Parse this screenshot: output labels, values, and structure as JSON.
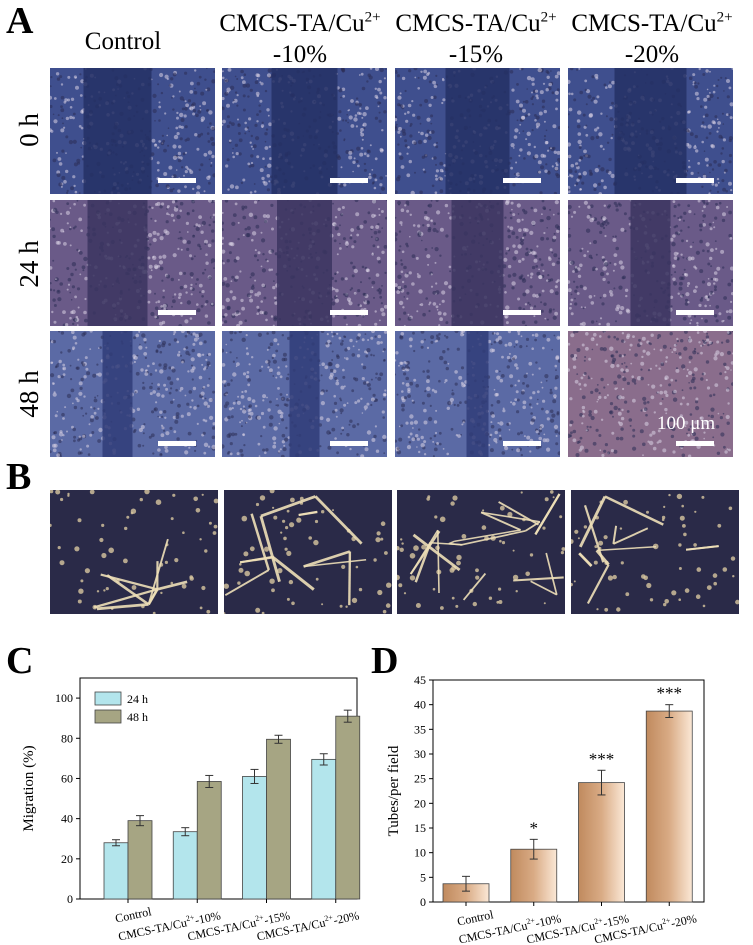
{
  "panels": {
    "A": {
      "label": "A",
      "columns": [
        {
          "line1": "Control",
          "line2": "",
          "sup": ""
        },
        {
          "line1": "CMCS-TA/Cu",
          "sup": "2+",
          "line2": "-10%"
        },
        {
          "line1": "CMCS-TA/Cu",
          "sup": "2+",
          "line2": "-15%"
        },
        {
          "line1": "CMCS-TA/Cu",
          "sup": "2+",
          "line2": "-20%"
        }
      ],
      "rows": [
        "0 h",
        "24 h",
        "48 h"
      ],
      "scale_label": "100 μm"
    },
    "B": {
      "label": "B"
    },
    "C": {
      "label": "C"
    },
    "D": {
      "label": "D"
    }
  },
  "chart_data": [
    {
      "type": "bar",
      "panel": "C",
      "categories": [
        "Control",
        "CMCS-TA/Cu2+-10%",
        "CMCS-TA/Cu2+-15%",
        "CMCS-TA/Cu2+-20%"
      ],
      "category_labels": [
        {
          "pre": "Control",
          "sup": "",
          "post": ""
        },
        {
          "pre": "CMCS-TA/Cu",
          "sup": "2+",
          "post": "-10%"
        },
        {
          "pre": "CMCS-TA/Cu",
          "sup": "2+",
          "post": "-15%"
        },
        {
          "pre": "CMCS-TA/Cu",
          "sup": "2+",
          "post": "-20%"
        }
      ],
      "series": [
        {
          "name": "24 h",
          "values": [
            28,
            33.5,
            61,
            69.5
          ],
          "errors": [
            1.5,
            2,
            3.5,
            2.8
          ],
          "color": "#b3e5ec"
        },
        {
          "name": "48 h",
          "values": [
            39,
            58.5,
            79.5,
            91
          ],
          "errors": [
            2.5,
            3,
            2,
            3
          ],
          "color": "#a6a583"
        }
      ],
      "ylabel": "Migration (%)",
      "ylim": [
        0,
        110
      ],
      "yticks": [
        0,
        20,
        40,
        60,
        80,
        100
      ],
      "legend": "top-left"
    },
    {
      "type": "bar",
      "panel": "D",
      "categories": [
        "Control",
        "CMCS-TA/Cu2+-10%",
        "CMCS-TA/Cu2+-15%",
        "CMCS-TA/Cu2+-20%"
      ],
      "category_labels": [
        {
          "pre": "Control",
          "sup": "",
          "post": ""
        },
        {
          "pre": "CMCS-TA/Cu",
          "sup": "2+",
          "post": "-10%"
        },
        {
          "pre": "CMCS-TA/Cu",
          "sup": "2+",
          "post": "-15%"
        },
        {
          "pre": "CMCS-TA/Cu",
          "sup": "2+",
          "post": "-20%"
        }
      ],
      "values": [
        3.7,
        10.7,
        24.2,
        38.7
      ],
      "errors": [
        1.5,
        2,
        2.5,
        1.3
      ],
      "significance": [
        "",
        "*",
        "***",
        "***"
      ],
      "color": "#d9ab85",
      "ylabel": "Tubes/per field",
      "ylim": [
        0,
        45
      ],
      "yticks": [
        0,
        5,
        10,
        15,
        20,
        25,
        30,
        35,
        40,
        45
      ]
    }
  ]
}
